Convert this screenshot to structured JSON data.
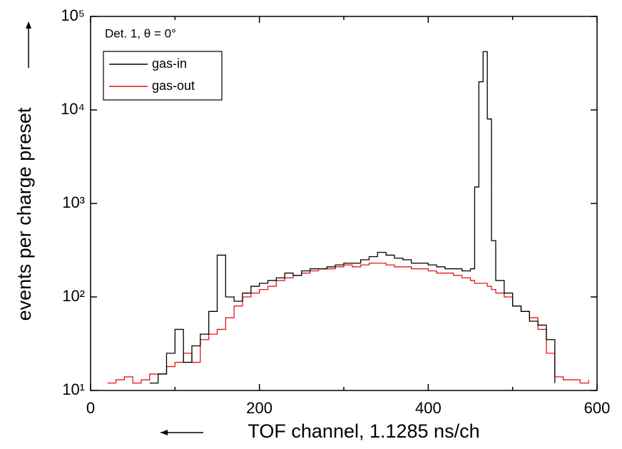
{
  "chart_data": {
    "type": "line",
    "step": true,
    "annotation": "Det. 1, θ = 0°",
    "xlabel": "TOF channel, 1.1285 ns/ch",
    "ylabel": "events per charge preset",
    "x": [
      0,
      10,
      20,
      30,
      40,
      50,
      60,
      70,
      80,
      90,
      100,
      110,
      120,
      130,
      140,
      150,
      160,
      170,
      180,
      190,
      200,
      210,
      220,
      230,
      240,
      250,
      260,
      270,
      280,
      290,
      300,
      310,
      320,
      330,
      340,
      350,
      360,
      370,
      380,
      390,
      400,
      410,
      420,
      430,
      440,
      450,
      455,
      460,
      465,
      470,
      475,
      480,
      490,
      500,
      510,
      520,
      530,
      540,
      550,
      560,
      570,
      580,
      590,
      600
    ],
    "series": [
      {
        "name": "gas-in",
        "color": "#000000",
        "values": [
          null,
          null,
          null,
          null,
          null,
          null,
          null,
          12,
          15,
          25,
          45,
          20,
          30,
          40,
          70,
          280,
          100,
          90,
          110,
          130,
          140,
          150,
          160,
          180,
          170,
          190,
          200,
          200,
          210,
          220,
          230,
          230,
          250,
          270,
          300,
          280,
          260,
          250,
          230,
          230,
          220,
          210,
          200,
          200,
          190,
          200,
          1500,
          20000,
          42000,
          8000,
          400,
          150,
          110,
          80,
          70,
          55,
          50,
          35,
          12,
          null,
          null,
          null,
          null,
          null
        ]
      },
      {
        "name": "gas-out",
        "color": "#e8141c",
        "values": [
          12,
          null,
          12,
          13,
          14,
          12,
          13,
          15,
          15,
          18,
          20,
          25,
          20,
          35,
          40,
          45,
          60,
          80,
          100,
          110,
          120,
          130,
          150,
          160,
          170,
          180,
          190,
          200,
          200,
          210,
          220,
          210,
          220,
          230,
          230,
          220,
          210,
          210,
          200,
          200,
          190,
          180,
          180,
          170,
          160,
          150,
          140,
          140,
          140,
          130,
          120,
          110,
          100,
          80,
          70,
          60,
          45,
          25,
          14,
          13,
          13,
          12,
          13,
          null
        ]
      }
    ],
    "xlim": [
      0,
      600
    ],
    "xticks": [
      0,
      200,
      400,
      600
    ],
    "xticks_minor": [
      100,
      300,
      500
    ],
    "ylim": [
      10,
      100000
    ],
    "ylog": true,
    "yticks": [
      {
        "value": 10,
        "label": "10¹"
      },
      {
        "value": 100,
        "label": "10²"
      },
      {
        "value": 1000,
        "label": "10³"
      },
      {
        "value": 10000,
        "label": "10⁴"
      },
      {
        "value": 100000,
        "label": "10⁵"
      }
    ],
    "legend": "upper left"
  }
}
